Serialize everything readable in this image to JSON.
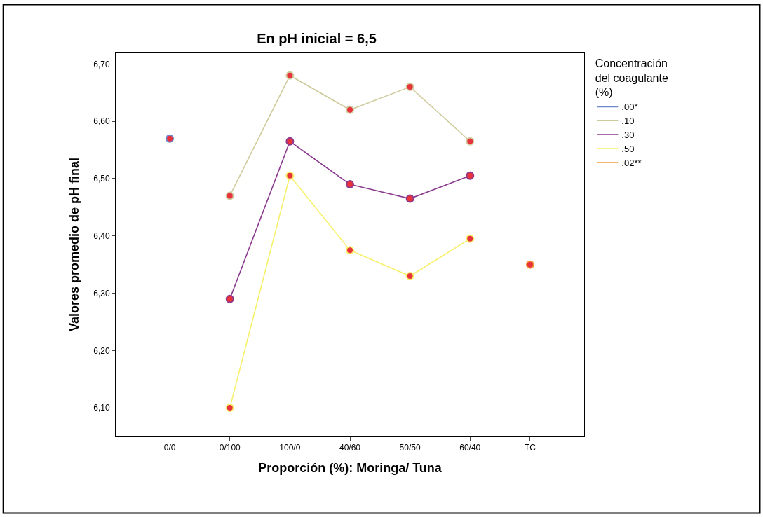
{
  "chart_data": {
    "type": "line",
    "title": "En pH inicial = 6,5",
    "xlabel": "Proporción (%): Moringa/ Tuna",
    "ylabel": "Valores promedio de pH final",
    "legend_title": "Concentración del coagulante (%)",
    "categories": [
      "0/0",
      "0/100",
      "100/0",
      "40/60",
      "50/50",
      "60/40",
      "TC"
    ],
    "series": [
      {
        "name": ".00*",
        "color": "#6f88c9",
        "values": [
          6.57,
          null,
          null,
          null,
          null,
          null,
          null
        ]
      },
      {
        "name": ".10",
        "color": "#cfcb9c",
        "values": [
          null,
          6.47,
          6.68,
          6.62,
          6.66,
          6.565,
          null
        ]
      },
      {
        "name": ".30",
        "color": "#8a3a8e",
        "values": [
          null,
          6.29,
          6.565,
          6.49,
          6.465,
          6.505,
          null
        ]
      },
      {
        "name": ".50",
        "color": "#f6f06a",
        "values": [
          null,
          6.1,
          6.505,
          6.375,
          6.33,
          6.395,
          null
        ]
      },
      {
        "name": ".02**",
        "color": "#f29a3c",
        "values": [
          null,
          null,
          null,
          null,
          null,
          null,
          6.35
        ]
      }
    ],
    "ylim": [
      6.05,
      6.72
    ],
    "yticks": [
      {
        "value": 6.1,
        "label": "6,10"
      },
      {
        "value": 6.2,
        "label": "6,20"
      },
      {
        "value": 6.3,
        "label": "6,30"
      },
      {
        "value": 6.4,
        "label": "6,40"
      },
      {
        "value": 6.5,
        "label": "6,50"
      },
      {
        "value": 6.6,
        "label": "6,60"
      },
      {
        "value": 6.7,
        "label": "6,70"
      }
    ],
    "legend": "top right",
    "marker": "circle",
    "line_style": "solid"
  }
}
